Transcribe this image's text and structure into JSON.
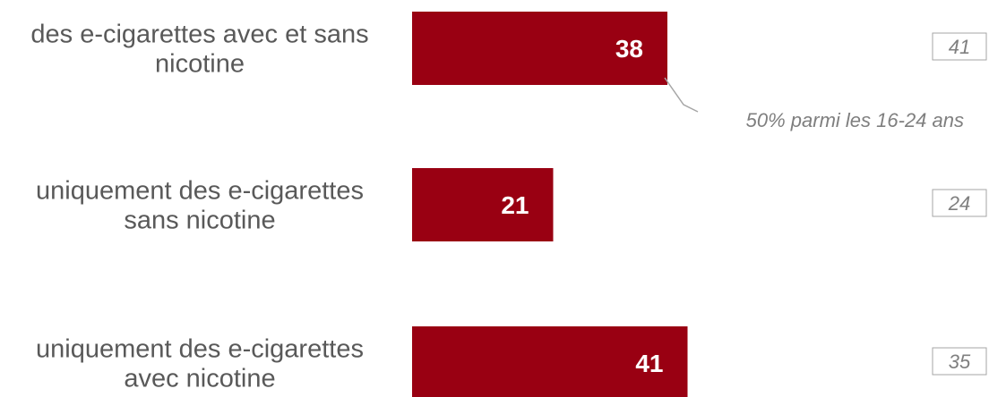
{
  "chart_data": {
    "type": "bar",
    "orientation": "horizontal",
    "categories": [
      [
        "des e-cigarettes avec et sans",
        "nicotine"
      ],
      [
        "uniquement des e-cigarettes",
        "sans nicotine"
      ],
      [
        "uniquement des e-cigarettes",
        "avec nicotine"
      ]
    ],
    "values": [
      38,
      21,
      41
    ],
    "comparison_values": [
      41,
      24,
      35
    ],
    "annotation": {
      "text": "50% parmi les 16-24 ans",
      "category_index": 0
    },
    "xlim": [
      0,
      100
    ],
    "grid": false,
    "legend": "none"
  },
  "colors": {
    "bar": "#990012",
    "bar_label": "#ffffff",
    "category_label": "#595959",
    "comparison_text": "#7f7f7f",
    "comparison_border": "#a6a6a6"
  }
}
